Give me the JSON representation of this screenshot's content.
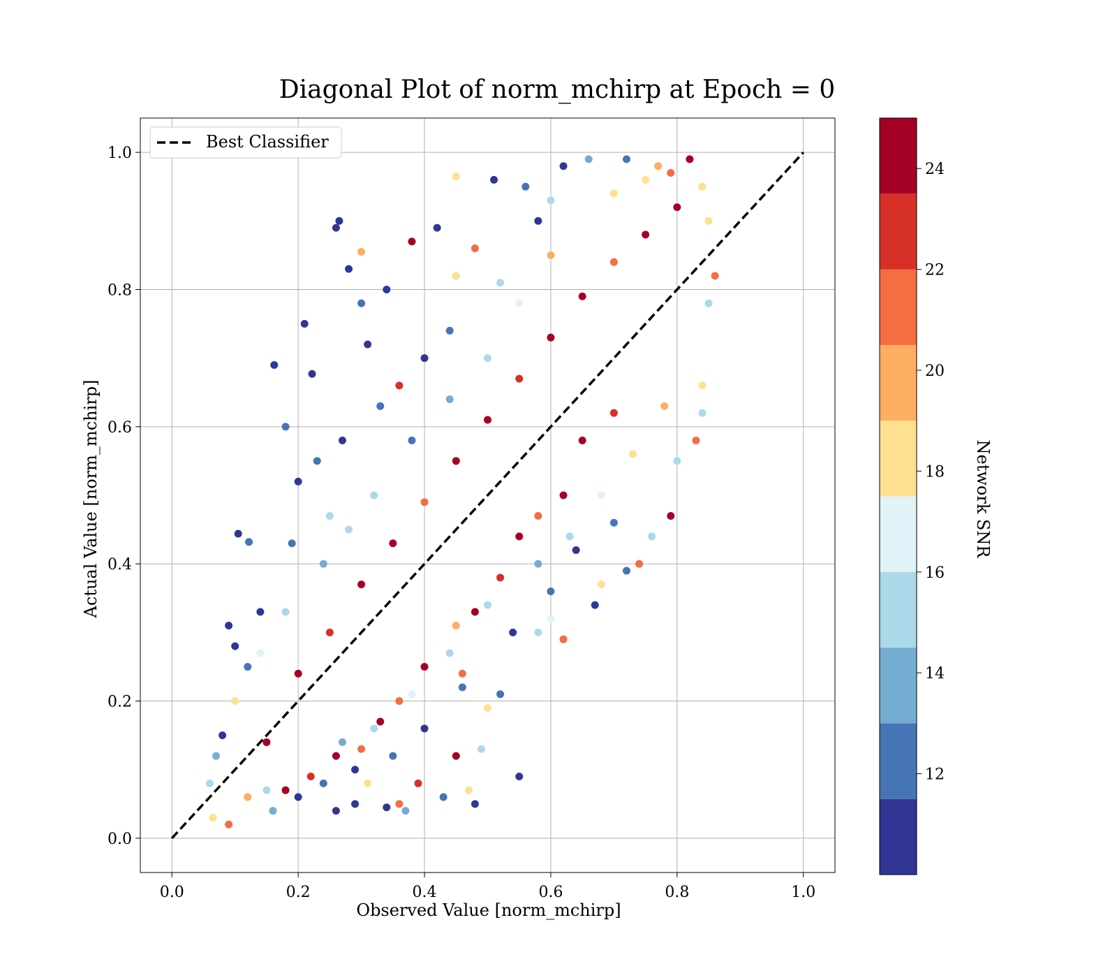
{
  "chart_data": {
    "type": "scatter",
    "title": "Diagonal Plot of norm_mchirp at Epoch = 0",
    "xlabel": "Observed Value [norm_mchirp]",
    "ylabel": "Actual Value [norm_mchirp]",
    "xlim": [
      -0.05,
      1.05
    ],
    "ylim": [
      -0.05,
      1.05
    ],
    "xticks": [
      "0.0",
      "0.2",
      "0.4",
      "0.6",
      "0.8",
      "1.0"
    ],
    "yticks": [
      "0.0",
      "0.2",
      "0.4",
      "0.6",
      "0.8",
      "1.0"
    ],
    "grid": true,
    "legend": {
      "placement": "upper-left",
      "label": "Best Classifier",
      "line_style": "dashed",
      "color": "#000000"
    },
    "diagonal_line": {
      "x": [
        0.0,
        1.0
      ],
      "y": [
        0.0,
        1.0
      ]
    },
    "colorbar": {
      "label": "Network SNR",
      "range": [
        10,
        25
      ],
      "ticks": [
        "12",
        "14",
        "16",
        "18",
        "20",
        "22",
        "24"
      ],
      "bands": [
        {
          "from": 10.0,
          "to": 11.5,
          "color": "#313695"
        },
        {
          "from": 11.5,
          "to": 13.0,
          "color": "#4575b4"
        },
        {
          "from": 13.0,
          "to": 14.5,
          "color": "#74add1"
        },
        {
          "from": 14.5,
          "to": 16.0,
          "color": "#abd9e9"
        },
        {
          "from": 16.0,
          "to": 17.5,
          "color": "#e0f3f8"
        },
        {
          "from": 17.5,
          "to": 19.0,
          "color": "#fee090"
        },
        {
          "from": 19.0,
          "to": 20.5,
          "color": "#fdae61"
        },
        {
          "from": 20.5,
          "to": 22.0,
          "color": "#f46d43"
        },
        {
          "from": 22.0,
          "to": 23.5,
          "color": "#d73027"
        },
        {
          "from": 23.5,
          "to": 25.0,
          "color": "#a50026"
        }
      ]
    },
    "points": [
      [
        0.09,
        0.31,
        10.5
      ],
      [
        0.1,
        0.28,
        11
      ],
      [
        0.105,
        0.444,
        11.2
      ],
      [
        0.122,
        0.432,
        12
      ],
      [
        0.162,
        0.69,
        10.8
      ],
      [
        0.21,
        0.75,
        11
      ],
      [
        0.222,
        0.677,
        11.3
      ],
      [
        0.18,
        0.6,
        12.5
      ],
      [
        0.26,
        0.89,
        11
      ],
      [
        0.265,
        0.9,
        10.6
      ],
      [
        0.28,
        0.83,
        11
      ],
      [
        0.3,
        0.78,
        12
      ],
      [
        0.31,
        0.72,
        11.5
      ],
      [
        0.34,
        0.8,
        11
      ],
      [
        0.33,
        0.63,
        12
      ],
      [
        0.3,
        0.855,
        20
      ],
      [
        0.45,
        0.965,
        19
      ],
      [
        0.51,
        0.96,
        11
      ],
      [
        0.56,
        0.95,
        12
      ],
      [
        0.58,
        0.9,
        11
      ],
      [
        0.6,
        0.93,
        15
      ],
      [
        0.62,
        0.98,
        11
      ],
      [
        0.66,
        0.99,
        14
      ],
      [
        0.72,
        0.99,
        12.5
      ],
      [
        0.75,
        0.96,
        19
      ],
      [
        0.42,
        0.89,
        11
      ],
      [
        0.48,
        0.86,
        21
      ],
      [
        0.38,
        0.87,
        24
      ],
      [
        0.45,
        0.82,
        18
      ],
      [
        0.52,
        0.81,
        15
      ],
      [
        0.4,
        0.7,
        11
      ],
      [
        0.44,
        0.74,
        12
      ],
      [
        0.36,
        0.66,
        23
      ],
      [
        0.27,
        0.58,
        11
      ],
      [
        0.23,
        0.55,
        13
      ],
      [
        0.2,
        0.52,
        11
      ],
      [
        0.25,
        0.47,
        15
      ],
      [
        0.19,
        0.43,
        12.5
      ],
      [
        0.14,
        0.33,
        11
      ],
      [
        0.12,
        0.25,
        13
      ],
      [
        0.08,
        0.15,
        11
      ],
      [
        0.07,
        0.12,
        14
      ],
      [
        0.06,
        0.08,
        15
      ],
      [
        0.065,
        0.03,
        18
      ],
      [
        0.09,
        0.02,
        22
      ],
      [
        0.12,
        0.06,
        20
      ],
      [
        0.15,
        0.07,
        16
      ],
      [
        0.2,
        0.06,
        11
      ],
      [
        0.26,
        0.04,
        11
      ],
      [
        0.29,
        0.05,
        11
      ],
      [
        0.31,
        0.08,
        18
      ],
      [
        0.34,
        0.045,
        11
      ],
      [
        0.36,
        0.05,
        22
      ],
      [
        0.37,
        0.04,
        14
      ],
      [
        0.39,
        0.08,
        23
      ],
      [
        0.43,
        0.06,
        12
      ],
      [
        0.48,
        0.05,
        11
      ],
      [
        0.47,
        0.07,
        19
      ],
      [
        0.45,
        0.12,
        24
      ],
      [
        0.49,
        0.13,
        16
      ],
      [
        0.52,
        0.21,
        12
      ],
      [
        0.5,
        0.19,
        19
      ],
      [
        0.46,
        0.24,
        21
      ],
      [
        0.55,
        0.09,
        11
      ],
      [
        0.58,
        0.3,
        16
      ],
      [
        0.62,
        0.29,
        22
      ],
      [
        0.6,
        0.32,
        17
      ],
      [
        0.67,
        0.34,
        11
      ],
      [
        0.68,
        0.37,
        19
      ],
      [
        0.72,
        0.39,
        13
      ],
      [
        0.74,
        0.4,
        22
      ],
      [
        0.76,
        0.44,
        15
      ],
      [
        0.79,
        0.47,
        24
      ],
      [
        0.8,
        0.55,
        16
      ],
      [
        0.83,
        0.58,
        22
      ],
      [
        0.84,
        0.62,
        15
      ],
      [
        0.84,
        0.66,
        18
      ],
      [
        0.85,
        0.78,
        16
      ],
      [
        0.86,
        0.82,
        21
      ],
      [
        0.85,
        0.9,
        19
      ],
      [
        0.84,
        0.95,
        18
      ],
      [
        0.82,
        0.99,
        24
      ],
      [
        0.79,
        0.97,
        22
      ],
      [
        0.77,
        0.98,
        20
      ],
      [
        0.7,
        0.94,
        18
      ],
      [
        0.65,
        0.58,
        24
      ],
      [
        0.7,
        0.62,
        23
      ],
      [
        0.62,
        0.5,
        24
      ],
      [
        0.58,
        0.47,
        21
      ],
      [
        0.55,
        0.44,
        24
      ],
      [
        0.52,
        0.38,
        23
      ],
      [
        0.48,
        0.33,
        24
      ],
      [
        0.45,
        0.31,
        20
      ],
      [
        0.4,
        0.25,
        24
      ],
      [
        0.36,
        0.2,
        22
      ],
      [
        0.33,
        0.17,
        24
      ],
      [
        0.3,
        0.13,
        21
      ],
      [
        0.26,
        0.12,
        24
      ],
      [
        0.22,
        0.09,
        23
      ],
      [
        0.18,
        0.07,
        24
      ],
      [
        0.15,
        0.14,
        24
      ],
      [
        0.2,
        0.24,
        24
      ],
      [
        0.25,
        0.3,
        23
      ],
      [
        0.3,
        0.37,
        24
      ],
      [
        0.35,
        0.43,
        24
      ],
      [
        0.4,
        0.49,
        22
      ],
      [
        0.45,
        0.55,
        24
      ],
      [
        0.5,
        0.61,
        24
      ],
      [
        0.55,
        0.67,
        23
      ],
      [
        0.6,
        0.73,
        24
      ],
      [
        0.65,
        0.79,
        24
      ],
      [
        0.7,
        0.84,
        22
      ],
      [
        0.75,
        0.88,
        24
      ],
      [
        0.8,
        0.92,
        24
      ],
      [
        0.6,
        0.85,
        20
      ],
      [
        0.55,
        0.78,
        17
      ],
      [
        0.5,
        0.7,
        15
      ],
      [
        0.44,
        0.64,
        14
      ],
      [
        0.38,
        0.58,
        13
      ],
      [
        0.32,
        0.5,
        15
      ],
      [
        0.28,
        0.45,
        16
      ],
      [
        0.24,
        0.4,
        14
      ],
      [
        0.18,
        0.33,
        15
      ],
      [
        0.14,
        0.27,
        17
      ],
      [
        0.1,
        0.2,
        19
      ],
      [
        0.58,
        0.4,
        14
      ],
      [
        0.63,
        0.44,
        15
      ],
      [
        0.68,
        0.5,
        17
      ],
      [
        0.73,
        0.56,
        19
      ],
      [
        0.78,
        0.63,
        20
      ],
      [
        0.5,
        0.34,
        16
      ],
      [
        0.44,
        0.27,
        15
      ],
      [
        0.38,
        0.21,
        17
      ],
      [
        0.32,
        0.16,
        15
      ],
      [
        0.27,
        0.14,
        14
      ],
      [
        0.7,
        0.46,
        12
      ],
      [
        0.64,
        0.42,
        11
      ],
      [
        0.6,
        0.36,
        12
      ],
      [
        0.54,
        0.3,
        11
      ],
      [
        0.46,
        0.22,
        12
      ],
      [
        0.4,
        0.16,
        11
      ],
      [
        0.35,
        0.12,
        13
      ],
      [
        0.29,
        0.1,
        11
      ],
      [
        0.24,
        0.08,
        12
      ],
      [
        0.16,
        0.04,
        14
      ]
    ]
  }
}
